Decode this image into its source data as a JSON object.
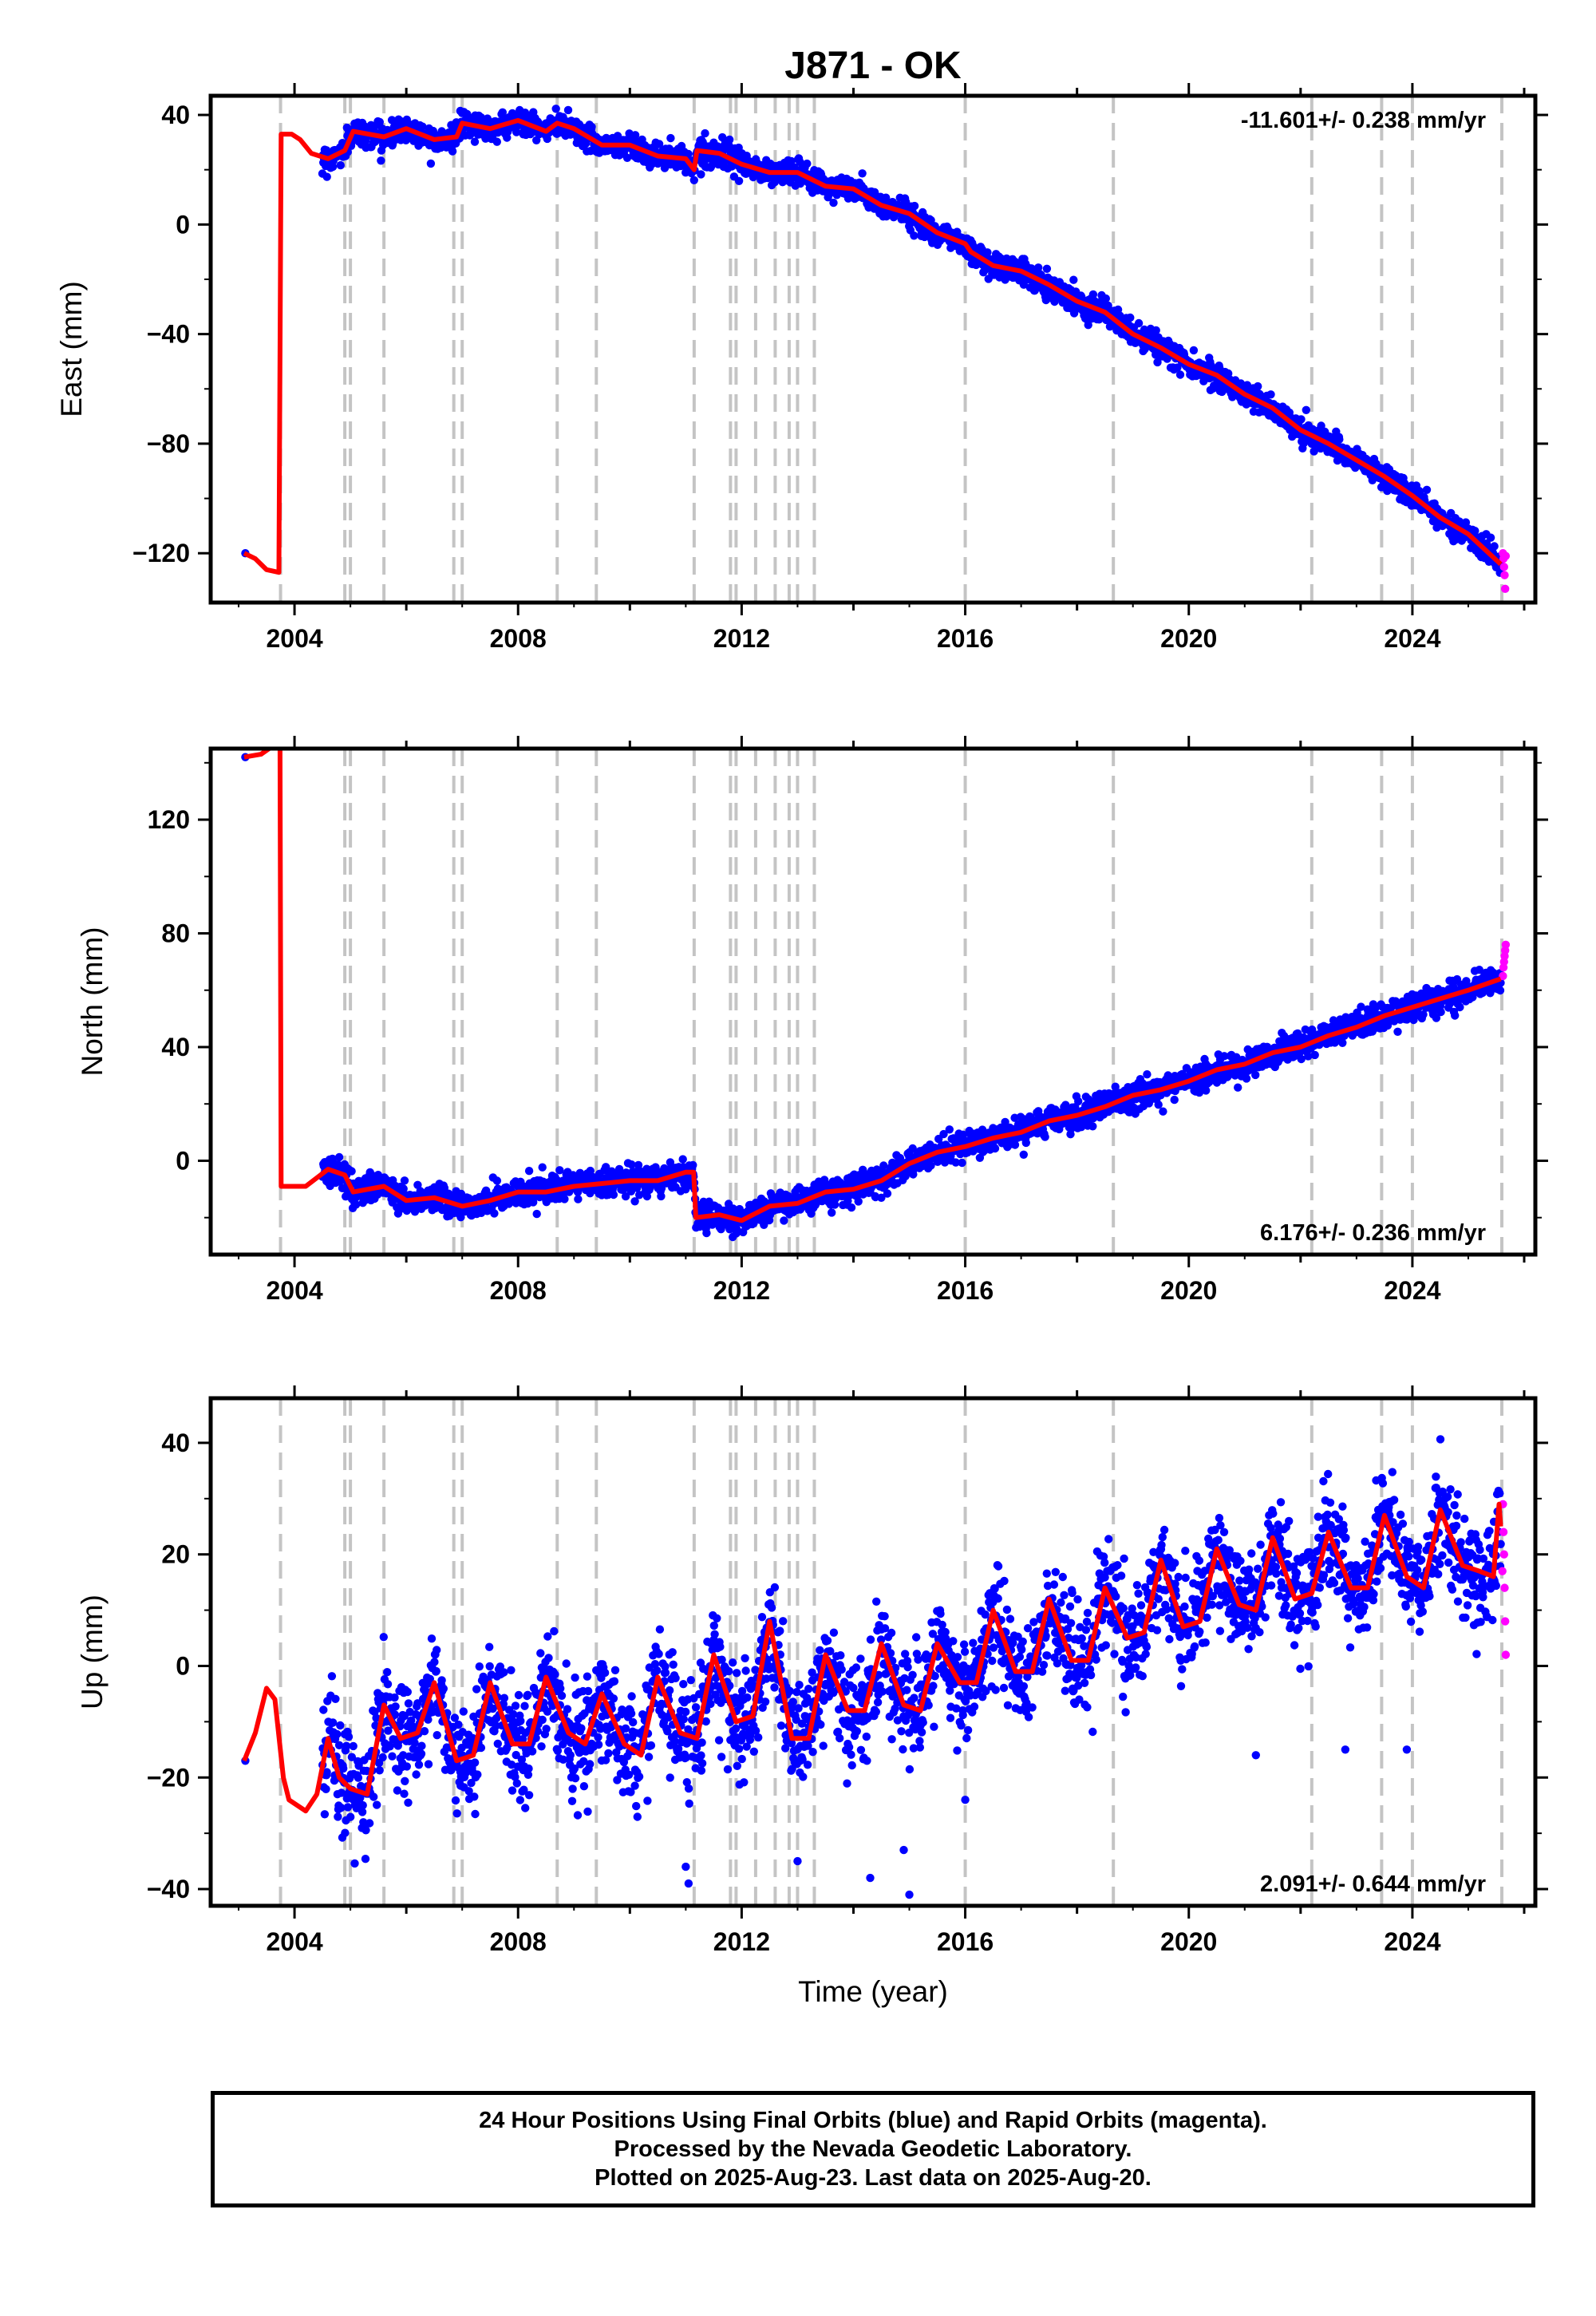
{
  "chart_data": {
    "title": "J871 - OK",
    "type": "scatter",
    "xlabel": "Time (year)",
    "xlim": [
      2002.5,
      2026.2
    ],
    "xticks": [
      2004,
      2008,
      2012,
      2016,
      2020,
      2024
    ],
    "equipment_change_lines": [
      2003.75,
      2004.9,
      2005.0,
      2005.6,
      2006.85,
      2007.0,
      2008.7,
      2009.4,
      2011.15,
      2011.8,
      2011.9,
      2012.25,
      2012.6,
      2012.85,
      2013.0,
      2013.3,
      2016.0,
      2018.65,
      2022.2,
      2023.45,
      2024.0,
      2025.6
    ],
    "legend": [
      {
        "name": "Final Orbits",
        "color": "#0000ff"
      },
      {
        "name": "Rapid Orbits",
        "color": "#ff00ff"
      },
      {
        "name": "Model fit",
        "color": "#ff0000"
      }
    ],
    "panels": [
      {
        "id": "east",
        "ylabel": "East (mm)",
        "ylim": [
          -138,
          47
        ],
        "yticks": [
          40,
          0,
          -40,
          -80,
          -120
        ],
        "rate_text": "-11.601+/- 0.238 mm/yr",
        "rate_position": "top-right",
        "data_start": 2004.5,
        "data_end": 2025.58,
        "scatter_sigma": 2.2,
        "red_model": [
          [
            2003.1,
            -120
          ],
          [
            2003.3,
            -122
          ],
          [
            2003.5,
            -126
          ],
          [
            2003.72,
            -127
          ],
          [
            2003.76,
            33
          ],
          [
            2003.95,
            33
          ],
          [
            2004.1,
            31
          ],
          [
            2004.3,
            26
          ],
          [
            2004.6,
            24
          ],
          [
            2004.9,
            27
          ],
          [
            2005.05,
            34
          ],
          [
            2005.6,
            32
          ],
          [
            2006.0,
            35
          ],
          [
            2006.5,
            31
          ],
          [
            2006.9,
            32
          ],
          [
            2007.0,
            37
          ],
          [
            2007.5,
            35
          ],
          [
            2008.0,
            38
          ],
          [
            2008.5,
            34
          ],
          [
            2008.7,
            37
          ],
          [
            2009.0,
            35
          ],
          [
            2009.5,
            29
          ],
          [
            2010.0,
            29
          ],
          [
            2010.5,
            25
          ],
          [
            2011.0,
            24
          ],
          [
            2011.15,
            20
          ],
          [
            2011.2,
            27
          ],
          [
            2011.6,
            26
          ],
          [
            2012.0,
            22
          ],
          [
            2012.5,
            19
          ],
          [
            2013.0,
            19
          ],
          [
            2013.5,
            14
          ],
          [
            2014.0,
            13
          ],
          [
            2014.5,
            7
          ],
          [
            2015.0,
            4
          ],
          [
            2015.5,
            -3
          ],
          [
            2016.0,
            -7
          ],
          [
            2016.1,
            -10
          ],
          [
            2016.5,
            -15
          ],
          [
            2017.0,
            -17
          ],
          [
            2017.5,
            -22
          ],
          [
            2018.0,
            -28
          ],
          [
            2018.5,
            -32
          ],
          [
            2019.0,
            -40
          ],
          [
            2019.5,
            -45
          ],
          [
            2020.0,
            -51
          ],
          [
            2020.5,
            -55
          ],
          [
            2021.0,
            -62
          ],
          [
            2021.5,
            -67
          ],
          [
            2022.0,
            -75
          ],
          [
            2022.5,
            -80
          ],
          [
            2023.0,
            -86
          ],
          [
            2023.5,
            -92
          ],
          [
            2024.0,
            -99
          ],
          [
            2024.5,
            -107
          ],
          [
            2025.0,
            -113
          ],
          [
            2025.58,
            -124
          ]
        ],
        "rapid_points": [
          [
            2025.62,
            -120
          ],
          [
            2025.63,
            -122
          ],
          [
            2025.64,
            -125
          ],
          [
            2025.65,
            -128
          ],
          [
            2025.66,
            -133
          ],
          [
            2025.67,
            -121
          ]
        ]
      },
      {
        "id": "north",
        "ylabel": "North (mm)",
        "ylim": [
          -33,
          145
        ],
        "yticks": [
          120,
          80,
          40,
          0
        ],
        "rate_text": "6.176+/- 0.236 mm/yr",
        "rate_position": "bottom-right",
        "data_start": 2004.5,
        "data_end": 2025.58,
        "scatter_sigma": 2.4,
        "red_model": [
          [
            2003.1,
            142
          ],
          [
            2003.4,
            143
          ],
          [
            2003.62,
            146
          ],
          [
            2003.74,
            146
          ],
          [
            2003.76,
            -9
          ],
          [
            2004.2,
            -9
          ],
          [
            2004.6,
            -3
          ],
          [
            2004.9,
            -5
          ],
          [
            2005.05,
            -11
          ],
          [
            2005.6,
            -9
          ],
          [
            2006.0,
            -14
          ],
          [
            2006.5,
            -13
          ],
          [
            2007.0,
            -16
          ],
          [
            2007.5,
            -14
          ],
          [
            2008.0,
            -11
          ],
          [
            2008.5,
            -11
          ],
          [
            2009.0,
            -9
          ],
          [
            2009.5,
            -8
          ],
          [
            2010.0,
            -7
          ],
          [
            2010.5,
            -7
          ],
          [
            2011.0,
            -4
          ],
          [
            2011.14,
            -4
          ],
          [
            2011.18,
            -20
          ],
          [
            2011.6,
            -19
          ],
          [
            2012.0,
            -21
          ],
          [
            2012.5,
            -16
          ],
          [
            2013.0,
            -15
          ],
          [
            2013.5,
            -11
          ],
          [
            2014.0,
            -10
          ],
          [
            2014.5,
            -7
          ],
          [
            2015.0,
            -1
          ],
          [
            2015.5,
            3
          ],
          [
            2016.0,
            5
          ],
          [
            2016.5,
            8
          ],
          [
            2017.0,
            10
          ],
          [
            2017.5,
            14
          ],
          [
            2018.0,
            16
          ],
          [
            2018.5,
            19
          ],
          [
            2019.0,
            23
          ],
          [
            2019.5,
            25
          ],
          [
            2020.0,
            28
          ],
          [
            2020.5,
            32
          ],
          [
            2021.0,
            34
          ],
          [
            2021.5,
            38
          ],
          [
            2022.0,
            40
          ],
          [
            2022.5,
            44
          ],
          [
            2023.0,
            47
          ],
          [
            2023.5,
            51
          ],
          [
            2024.0,
            54
          ],
          [
            2024.5,
            57
          ],
          [
            2025.0,
            60
          ],
          [
            2025.58,
            64
          ]
        ],
        "rapid_points": [
          [
            2025.62,
            65
          ],
          [
            2025.63,
            68
          ],
          [
            2025.64,
            70
          ],
          [
            2025.65,
            72
          ],
          [
            2025.66,
            74
          ],
          [
            2025.67,
            76
          ]
        ]
      },
      {
        "id": "up",
        "ylabel": "Up (mm)",
        "ylim": [
          -43,
          48
        ],
        "yticks": [
          40,
          20,
          0,
          -20,
          -40
        ],
        "rate_text": "2.091+/- 0.644 mm/yr",
        "rate_position": "bottom-right",
        "data_start": 2004.5,
        "data_end": 2025.58,
        "scatter_sigma": 4.6,
        "red_model": [
          [
            2003.1,
            -17
          ],
          [
            2003.3,
            -12
          ],
          [
            2003.5,
            -4
          ],
          [
            2003.65,
            -6
          ],
          [
            2003.8,
            -20
          ],
          [
            2003.9,
            -24
          ],
          [
            2004.2,
            -26
          ],
          [
            2004.4,
            -23
          ],
          [
            2004.6,
            -13
          ],
          [
            2004.8,
            -20
          ],
          [
            2005.0,
            -22
          ],
          [
            2005.3,
            -23
          ],
          [
            2005.6,
            -7
          ],
          [
            2005.9,
            -13
          ],
          [
            2006.2,
            -12
          ],
          [
            2006.5,
            -3
          ],
          [
            2006.9,
            -17
          ],
          [
            2007.2,
            -16
          ],
          [
            2007.5,
            -3
          ],
          [
            2007.9,
            -14
          ],
          [
            2008.2,
            -14
          ],
          [
            2008.5,
            -2
          ],
          [
            2008.9,
            -12
          ],
          [
            2009.2,
            -14
          ],
          [
            2009.5,
            -5
          ],
          [
            2009.9,
            -14
          ],
          [
            2010.2,
            -16
          ],
          [
            2010.5,
            -2
          ],
          [
            2010.9,
            -12
          ],
          [
            2011.2,
            -13
          ],
          [
            2011.5,
            2
          ],
          [
            2011.9,
            -10
          ],
          [
            2012.2,
            -9
          ],
          [
            2012.5,
            8
          ],
          [
            2012.9,
            -13
          ],
          [
            2013.2,
            -13
          ],
          [
            2013.5,
            2
          ],
          [
            2013.9,
            -8
          ],
          [
            2014.2,
            -8
          ],
          [
            2014.5,
            4
          ],
          [
            2014.9,
            -7
          ],
          [
            2015.2,
            -8
          ],
          [
            2015.5,
            4
          ],
          [
            2015.9,
            -3
          ],
          [
            2016.2,
            -3
          ],
          [
            2016.5,
            10
          ],
          [
            2016.9,
            -1
          ],
          [
            2017.2,
            -1
          ],
          [
            2017.5,
            12
          ],
          [
            2017.9,
            1
          ],
          [
            2018.2,
            1
          ],
          [
            2018.5,
            14
          ],
          [
            2018.9,
            5
          ],
          [
            2019.2,
            6
          ],
          [
            2019.5,
            19
          ],
          [
            2019.9,
            7
          ],
          [
            2020.2,
            8
          ],
          [
            2020.5,
            21
          ],
          [
            2020.9,
            11
          ],
          [
            2021.2,
            10
          ],
          [
            2021.5,
            23
          ],
          [
            2021.9,
            12
          ],
          [
            2022.2,
            13
          ],
          [
            2022.5,
            24
          ],
          [
            2022.9,
            14
          ],
          [
            2023.2,
            14
          ],
          [
            2023.5,
            27
          ],
          [
            2023.9,
            16
          ],
          [
            2024.2,
            14
          ],
          [
            2024.5,
            28
          ],
          [
            2024.9,
            18
          ],
          [
            2025.2,
            17
          ],
          [
            2025.45,
            16
          ],
          [
            2025.55,
            29
          ],
          [
            2025.58,
            25
          ]
        ],
        "rapid_points": [
          [
            2025.62,
            29
          ],
          [
            2025.63,
            24
          ],
          [
            2025.64,
            20
          ],
          [
            2025.65,
            14
          ],
          [
            2025.66,
            8
          ],
          [
            2025.67,
            2
          ],
          [
            2025.61,
            17
          ]
        ],
        "outliers": [
          [
            2011.0,
            -36
          ],
          [
            2011.05,
            -39
          ],
          [
            2013.0,
            -35
          ],
          [
            2014.3,
            -38
          ],
          [
            2014.9,
            -33
          ],
          [
            2015.0,
            -41
          ],
          [
            2016.0,
            -24
          ],
          [
            2021.2,
            -16
          ],
          [
            2022.8,
            -15
          ],
          [
            2023.9,
            -15
          ]
        ]
      }
    ]
  },
  "footer": {
    "line1": "24 Hour Positions Using Final Orbits (blue) and Rapid Orbits (magenta).",
    "line2": "Processed by the Nevada Geodetic Laboratory.",
    "line3": "Plotted on 2025-Aug-23. Last data on 2025-Aug-20."
  }
}
